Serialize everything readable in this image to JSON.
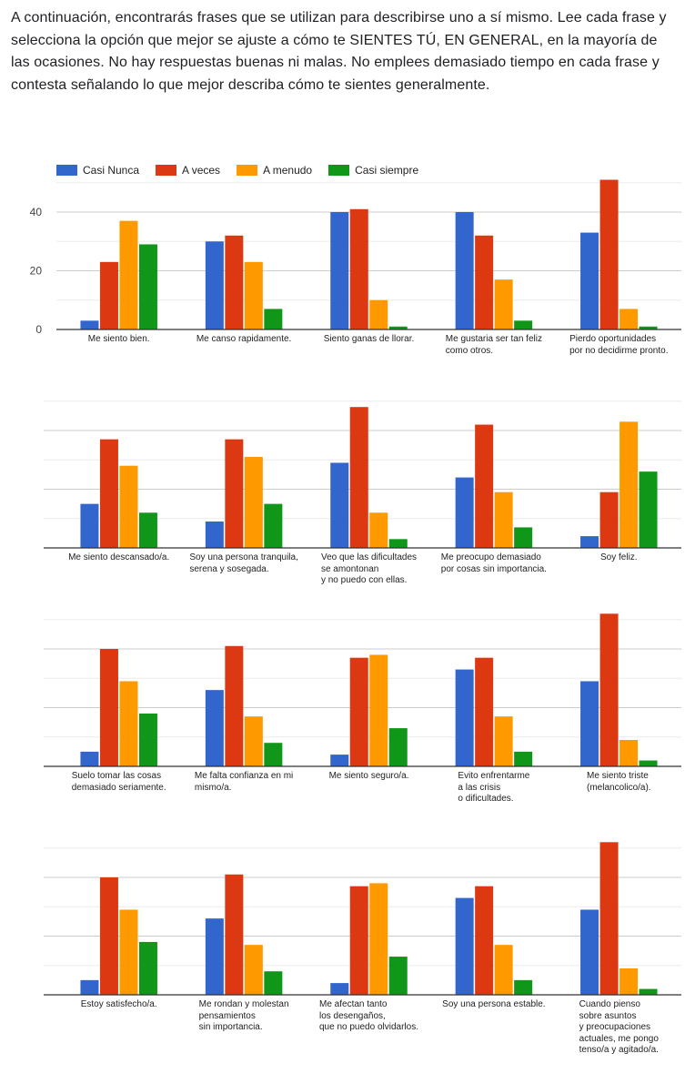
{
  "intro": "A continuación, encontrarás frases que se utilizan para describirse uno a sí mismo. Lee cada frase y selecciona la opción que mejor se ajuste a cómo te SIENTES TÚ, EN GENERAL, en la mayoría de las ocasiones. No hay respuestas buenas ni malas. No emplees demasiado tiempo en cada frase y contesta señalando lo que mejor describa cómo te sientes generalmente.",
  "legend": [
    {
      "label": "Casi Nunca",
      "color": "#3366cc"
    },
    {
      "label": "A veces",
      "color": "#dc3912"
    },
    {
      "label": "A menudo",
      "color": "#ff9900"
    },
    {
      "label": "Casi siempre",
      "color": "#109618"
    }
  ],
  "chart_data": [
    {
      "type": "bar",
      "ylim": [
        0,
        50
      ],
      "yticks": [
        "0",
        "20",
        "40"
      ],
      "categories": [
        "Me siento bien.",
        "Me canso rapidamente.",
        "Siento ganas de llorar.",
        "Me gustaria ser tan feliz\ncomo otros.",
        "Pierdo oportunidades\npor no decidirme pronto."
      ],
      "series": [
        {
          "name": "Casi Nunca",
          "values": [
            3,
            30,
            40,
            40,
            33
          ]
        },
        {
          "name": "A veces",
          "values": [
            23,
            32,
            41,
            32,
            51
          ]
        },
        {
          "name": "A menudo",
          "values": [
            37,
            23,
            10,
            17,
            7
          ]
        },
        {
          "name": "Casi siempre",
          "values": [
            29,
            7,
            1,
            3,
            1
          ]
        }
      ]
    },
    {
      "type": "bar",
      "ylim": [
        0,
        50
      ],
      "categories": [
        "Me siento descansado/a.",
        "Soy una persona tranquila,\nserena y sosegada.",
        "Veo que las dificultades\nse amontonan\ny no puedo con ellas.",
        "Me preocupo demasiado\npor cosas sin importancia.",
        "Soy feliz."
      ],
      "series": [
        {
          "name": "Casi Nunca",
          "values": [
            15,
            9,
            29,
            24,
            4
          ]
        },
        {
          "name": "A veces",
          "values": [
            37,
            37,
            48,
            42,
            19
          ]
        },
        {
          "name": "A menudo",
          "values": [
            28,
            31,
            12,
            19,
            43
          ]
        },
        {
          "name": "Casi siempre",
          "values": [
            12,
            15,
            3,
            7,
            26
          ]
        }
      ]
    },
    {
      "type": "bar",
      "ylim": [
        0,
        50
      ],
      "categories": [
        "Suelo tomar las cosas\ndemasiado seriamente.",
        "Me falta confianza en mi\nmismo/a.",
        "Me siento seguro/a.",
        "Evito enfrentarme\na las crisis\no dificultades.",
        "Me siento triste\n(melancolico/a)."
      ],
      "series": [
        {
          "name": "Casi Nunca",
          "values": [
            5,
            26,
            4,
            33,
            29
          ]
        },
        {
          "name": "A veces",
          "values": [
            40,
            41,
            37,
            37,
            52
          ]
        },
        {
          "name": "A menudo",
          "values": [
            29,
            17,
            38,
            17,
            9
          ]
        },
        {
          "name": "Casi siempre",
          "values": [
            18,
            8,
            13,
            5,
            2
          ]
        }
      ]
    },
    {
      "type": "bar",
      "ylim": [
        0,
        50
      ],
      "categories": [
        "Estoy satisfecho/a.",
        "Me rondan y molestan\npensamientos\nsin importancia.",
        "Me afectan tanto\nlos desengaños,\nque no puedo olvidarlos.",
        "Soy una persona estable.",
        "Cuando pienso\nsobre asuntos\ny preocupaciones\nactuales, me pongo\ntenso/a y agitado/a."
      ],
      "series": [
        {
          "name": "Casi Nunca",
          "values": [
            5,
            26,
            4,
            33,
            29
          ]
        },
        {
          "name": "A veces",
          "values": [
            40,
            41,
            37,
            37,
            52
          ]
        },
        {
          "name": "A menudo",
          "values": [
            29,
            17,
            38,
            17,
            9
          ]
        },
        {
          "name": "Casi siempre",
          "values": [
            18,
            8,
            13,
            5,
            2
          ]
        }
      ]
    }
  ]
}
